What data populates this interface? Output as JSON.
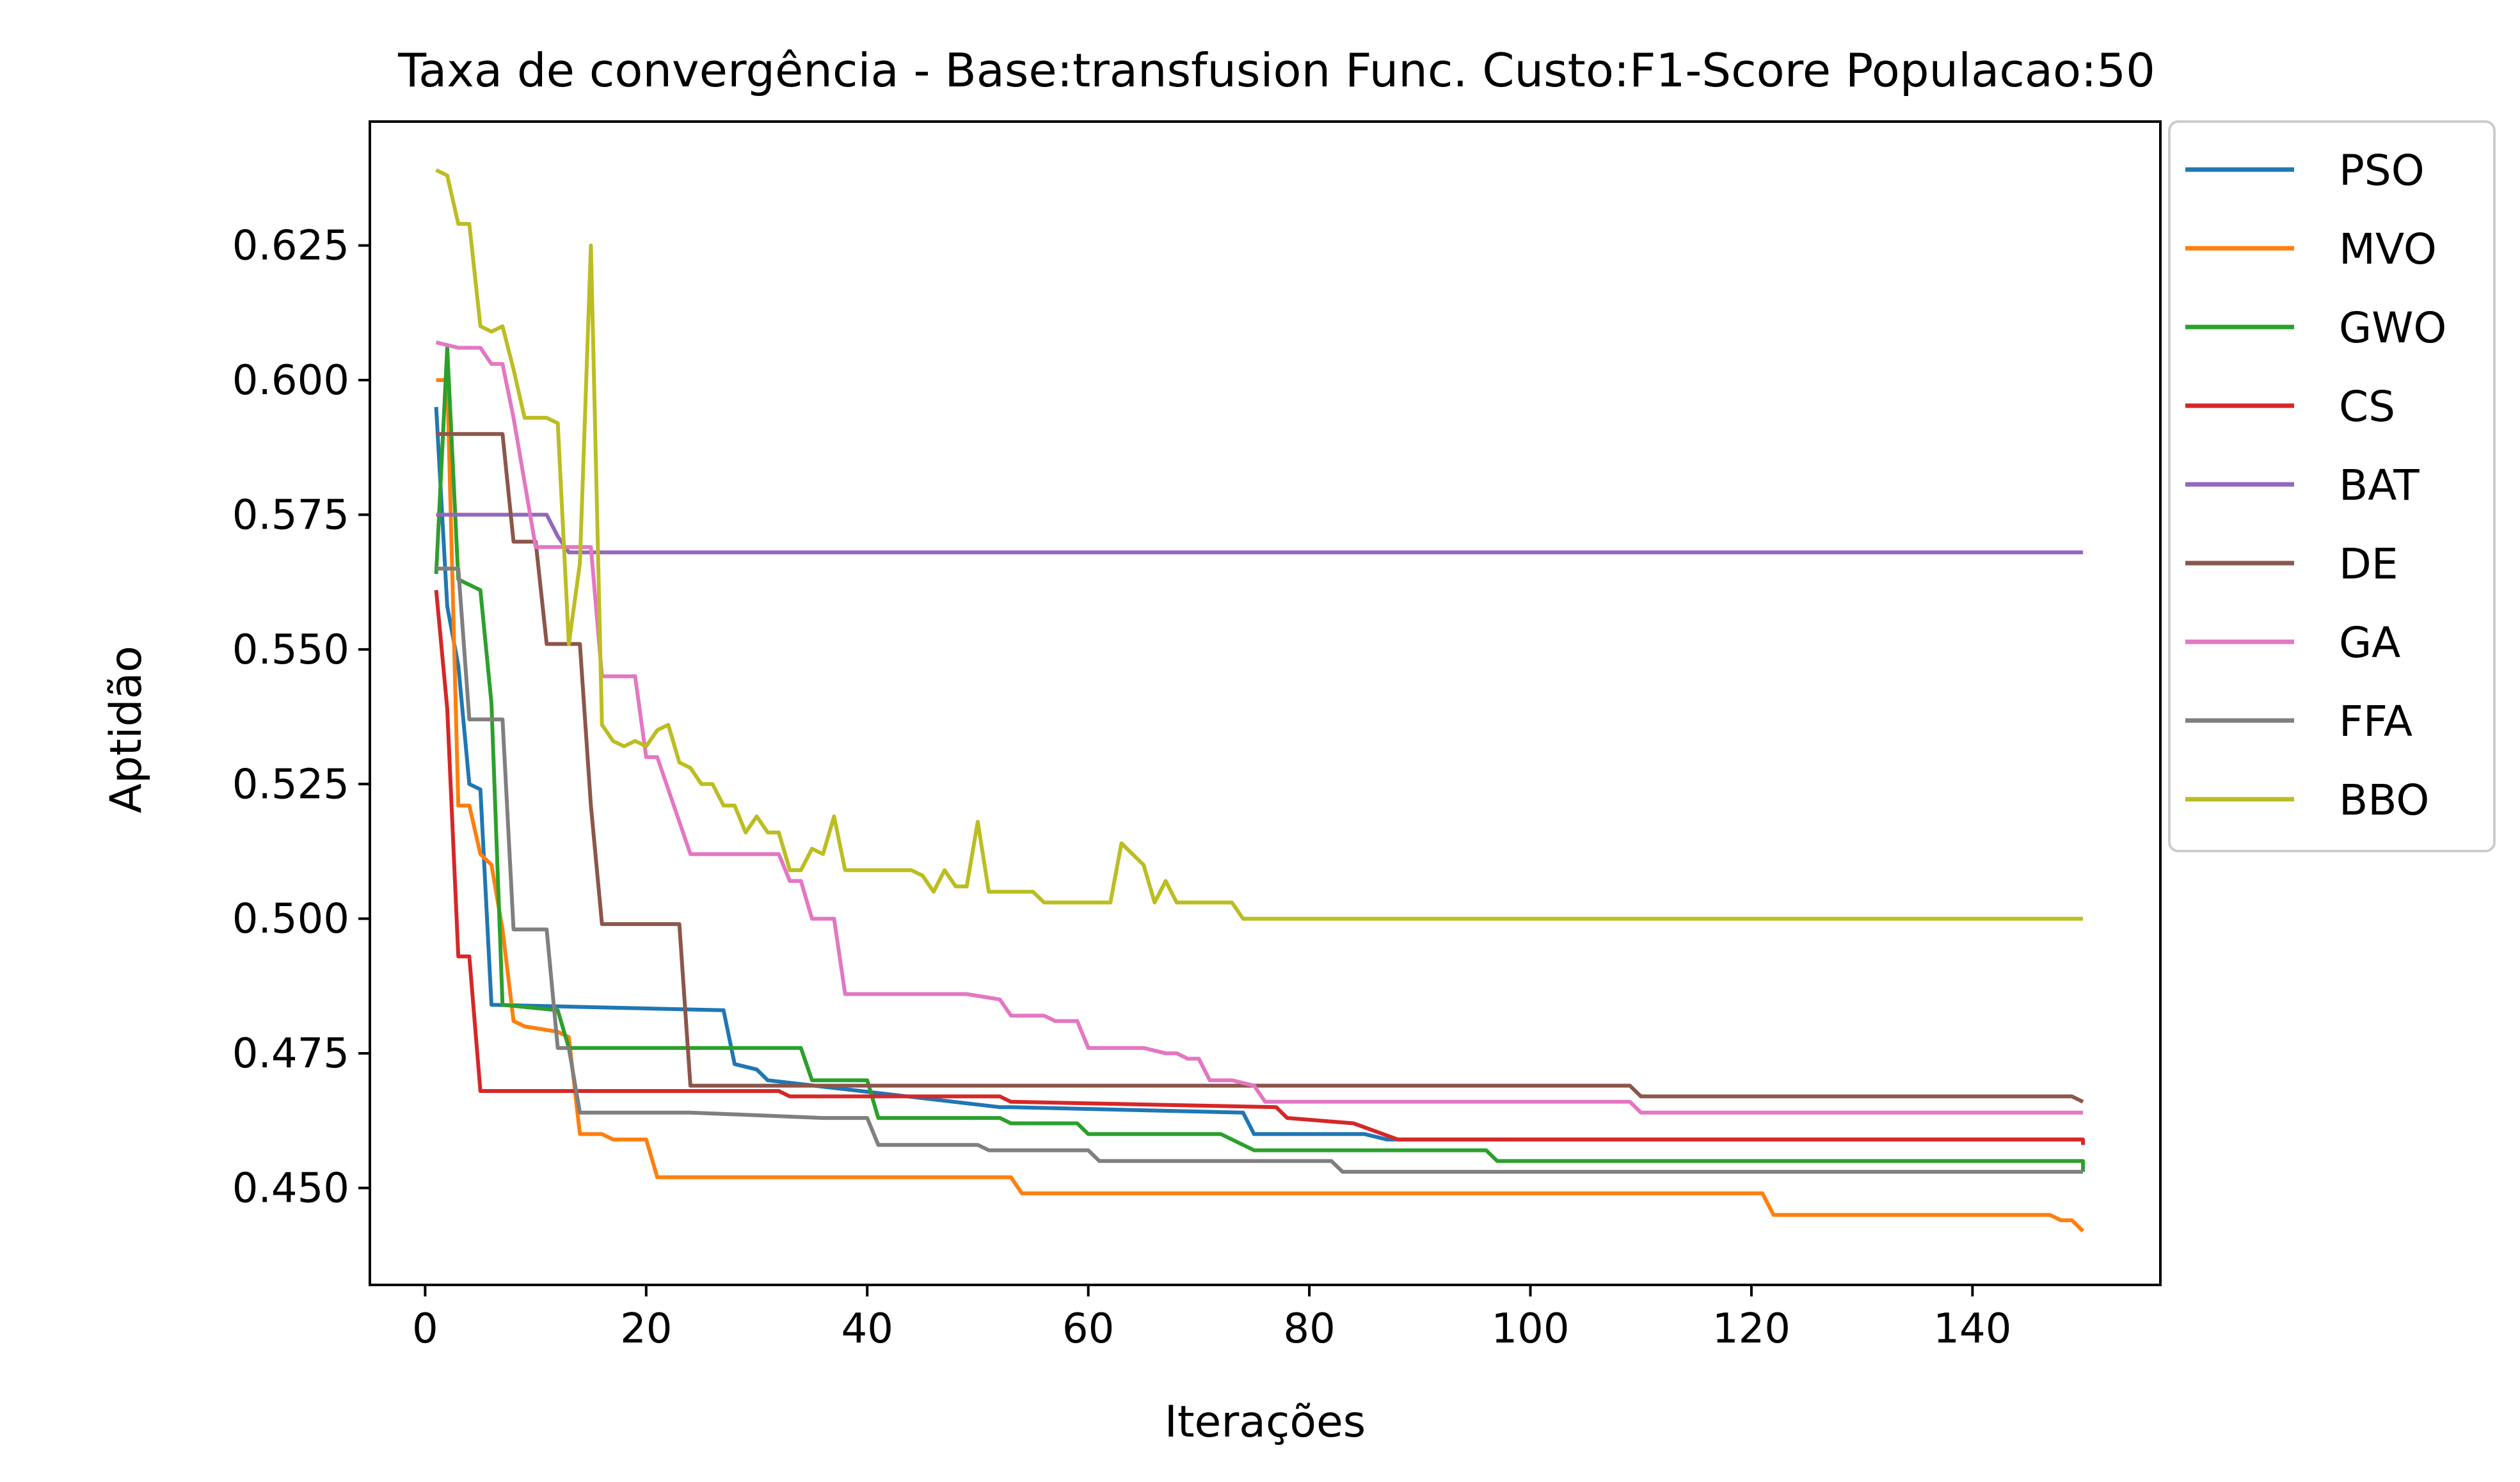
{
  "chart_data": {
    "type": "line",
    "title": "Taxa de convergência - Base:transfusion Func. Custo:F1-Score Populacao:50",
    "xlabel": "Iterações",
    "ylabel": "Aptidão",
    "xlim": [
      -5,
      157
    ],
    "ylim": [
      0.432,
      0.648
    ],
    "xticks": [
      0,
      20,
      40,
      60,
      80,
      100,
      120,
      140
    ],
    "yticks": [
      0.45,
      0.475,
      0.5,
      0.525,
      0.55,
      0.575,
      0.6,
      0.625
    ],
    "ytick_labels": [
      "0.450",
      "0.475",
      "0.500",
      "0.525",
      "0.550",
      "0.575",
      "0.600",
      "0.625"
    ],
    "grid": false,
    "legend_position": "outside top-right",
    "series": [
      {
        "name": "PSO",
        "color": "#1f77b4",
        "points": [
          [
            1,
            0.595
          ],
          [
            2,
            0.558
          ],
          [
            3,
            0.547
          ],
          [
            4,
            0.525
          ],
          [
            5,
            0.524
          ],
          [
            6,
            0.484
          ],
          [
            27,
            0.483
          ],
          [
            28,
            0.473
          ],
          [
            30,
            0.472
          ],
          [
            31,
            0.47
          ],
          [
            52,
            0.465
          ],
          [
            53,
            0.465
          ],
          [
            74,
            0.464
          ],
          [
            75,
            0.46
          ],
          [
            85,
            0.46
          ],
          [
            87,
            0.459
          ],
          [
            150,
            0.459
          ]
        ]
      },
      {
        "name": "MVO",
        "color": "#ff7f0e",
        "points": [
          [
            1,
            0.6
          ],
          [
            2,
            0.6
          ],
          [
            3,
            0.521
          ],
          [
            4,
            0.521
          ],
          [
            5,
            0.512
          ],
          [
            6,
            0.51
          ],
          [
            7,
            0.498
          ],
          [
            8,
            0.481
          ],
          [
            9,
            0.48
          ],
          [
            12,
            0.479
          ],
          [
            13,
            0.478
          ],
          [
            14,
            0.46
          ],
          [
            16,
            0.46
          ],
          [
            17,
            0.459
          ],
          [
            20,
            0.459
          ],
          [
            21,
            0.452
          ],
          [
            53,
            0.452
          ],
          [
            54,
            0.449
          ],
          [
            121,
            0.449
          ],
          [
            122,
            0.445
          ],
          [
            147,
            0.445
          ],
          [
            148,
            0.444
          ],
          [
            149,
            0.444
          ],
          [
            150,
            0.442
          ]
        ]
      },
      {
        "name": "GWO",
        "color": "#2ca02c",
        "points": [
          [
            1,
            0.564
          ],
          [
            2,
            0.606
          ],
          [
            3,
            0.563
          ],
          [
            4,
            0.562
          ],
          [
            5,
            0.561
          ],
          [
            6,
            0.54
          ],
          [
            7,
            0.484
          ],
          [
            12,
            0.483
          ],
          [
            13,
            0.476
          ],
          [
            34,
            0.476
          ],
          [
            35,
            0.47
          ],
          [
            40,
            0.47
          ],
          [
            41,
            0.463
          ],
          [
            52,
            0.463
          ],
          [
            53,
            0.462
          ],
          [
            59,
            0.462
          ],
          [
            60,
            0.46
          ],
          [
            72,
            0.46
          ],
          [
            75,
            0.457
          ],
          [
            96,
            0.457
          ],
          [
            97,
            0.455
          ],
          [
            150,
            0.455
          ],
          [
            150,
            0.453
          ]
        ]
      },
      {
        "name": "CS",
        "color": "#d62728",
        "points": [
          [
            1,
            0.561
          ],
          [
            2,
            0.539
          ],
          [
            3,
            0.493
          ],
          [
            4,
            0.493
          ],
          [
            5,
            0.468
          ],
          [
            32,
            0.468
          ],
          [
            33,
            0.467
          ],
          [
            52,
            0.467
          ],
          [
            53,
            0.466
          ],
          [
            77,
            0.465
          ],
          [
            78,
            0.463
          ],
          [
            84,
            0.462
          ],
          [
            88,
            0.459
          ],
          [
            150,
            0.459
          ],
          [
            150,
            0.458
          ]
        ]
      },
      {
        "name": "BAT",
        "color": "#9467bd",
        "points": [
          [
            1,
            0.575
          ],
          [
            11,
            0.575
          ],
          [
            12,
            0.571
          ],
          [
            13,
            0.568
          ],
          [
            150,
            0.568
          ]
        ]
      },
      {
        "name": "DE",
        "color": "#8c564b",
        "points": [
          [
            1,
            0.59
          ],
          [
            7,
            0.59
          ],
          [
            8,
            0.57
          ],
          [
            10,
            0.57
          ],
          [
            11,
            0.551
          ],
          [
            13,
            0.551
          ],
          [
            14,
            0.551
          ],
          [
            15,
            0.521
          ],
          [
            16,
            0.499
          ],
          [
            23,
            0.499
          ],
          [
            24,
            0.469
          ],
          [
            109,
            0.469
          ],
          [
            110,
            0.467
          ],
          [
            149,
            0.467
          ],
          [
            150,
            0.466
          ]
        ]
      },
      {
        "name": "GA",
        "color": "#e377c2",
        "points": [
          [
            1,
            0.607
          ],
          [
            3,
            0.606
          ],
          [
            5,
            0.606
          ],
          [
            6,
            0.603
          ],
          [
            7,
            0.603
          ],
          [
            8,
            0.593
          ],
          [
            10,
            0.569
          ],
          [
            15,
            0.569
          ],
          [
            16,
            0.545
          ],
          [
            19,
            0.545
          ],
          [
            20,
            0.53
          ],
          [
            21,
            0.53
          ],
          [
            23,
            0.518
          ],
          [
            24,
            0.512
          ],
          [
            32,
            0.512
          ],
          [
            33,
            0.507
          ],
          [
            34,
            0.507
          ],
          [
            35,
            0.5
          ],
          [
            37,
            0.5
          ],
          [
            38,
            0.486
          ],
          [
            49,
            0.486
          ],
          [
            52,
            0.485
          ],
          [
            53,
            0.482
          ],
          [
            56,
            0.482
          ],
          [
            57,
            0.481
          ],
          [
            59,
            0.481
          ],
          [
            60,
            0.476
          ],
          [
            65,
            0.476
          ],
          [
            67,
            0.475
          ],
          [
            68,
            0.475
          ],
          [
            69,
            0.474
          ],
          [
            70,
            0.474
          ],
          [
            71,
            0.47
          ],
          [
            73,
            0.47
          ],
          [
            75,
            0.469
          ],
          [
            76,
            0.466
          ],
          [
            109,
            0.466
          ],
          [
            110,
            0.464
          ],
          [
            150,
            0.464
          ]
        ]
      },
      {
        "name": "FFA",
        "color": "#7f7f7f",
        "points": [
          [
            1,
            0.565
          ],
          [
            3,
            0.565
          ],
          [
            4,
            0.537
          ],
          [
            7,
            0.537
          ],
          [
            8,
            0.498
          ],
          [
            11,
            0.498
          ],
          [
            12,
            0.476
          ],
          [
            13,
            0.476
          ],
          [
            14,
            0.464
          ],
          [
            23,
            0.464
          ],
          [
            24,
            0.464
          ],
          [
            36,
            0.463
          ],
          [
            40,
            0.463
          ],
          [
            41,
            0.458
          ],
          [
            50,
            0.458
          ],
          [
            51,
            0.457
          ],
          [
            60,
            0.457
          ],
          [
            61,
            0.455
          ],
          [
            82,
            0.455
          ],
          [
            83,
            0.453
          ],
          [
            150,
            0.453
          ]
        ]
      },
      {
        "name": "BBO",
        "color": "#bcbd22",
        "points": [
          [
            1,
            0.639
          ],
          [
            2,
            0.638
          ],
          [
            3,
            0.629
          ],
          [
            4,
            0.629
          ],
          [
            5,
            0.61
          ],
          [
            6,
            0.609
          ],
          [
            7,
            0.61
          ],
          [
            8,
            0.602
          ],
          [
            9,
            0.593
          ],
          [
            11,
            0.593
          ],
          [
            12,
            0.592
          ],
          [
            13,
            0.551
          ],
          [
            14,
            0.566
          ],
          [
            15,
            0.625
          ],
          [
            16,
            0.536
          ],
          [
            17,
            0.533
          ],
          [
            18,
            0.532
          ],
          [
            19,
            0.533
          ],
          [
            20,
            0.532
          ],
          [
            21,
            0.535
          ],
          [
            22,
            0.536
          ],
          [
            23,
            0.529
          ],
          [
            24,
            0.528
          ],
          [
            25,
            0.525
          ],
          [
            26,
            0.525
          ],
          [
            27,
            0.521
          ],
          [
            28,
            0.521
          ],
          [
            29,
            0.516
          ],
          [
            30,
            0.519
          ],
          [
            31,
            0.516
          ],
          [
            32,
            0.516
          ],
          [
            33,
            0.509
          ],
          [
            34,
            0.509
          ],
          [
            35,
            0.513
          ],
          [
            36,
            0.512
          ],
          [
            37,
            0.519
          ],
          [
            38,
            0.509
          ],
          [
            42,
            0.509
          ],
          [
            43,
            0.509
          ],
          [
            44,
            0.509
          ],
          [
            45,
            0.508
          ],
          [
            46,
            0.505
          ],
          [
            47,
            0.509
          ],
          [
            48,
            0.506
          ],
          [
            49,
            0.506
          ],
          [
            50,
            0.518
          ],
          [
            51,
            0.505
          ],
          [
            55,
            0.505
          ],
          [
            56,
            0.503
          ],
          [
            62,
            0.503
          ],
          [
            63,
            0.514
          ],
          [
            64,
            0.512
          ],
          [
            65,
            0.51
          ],
          [
            66,
            0.503
          ],
          [
            67,
            0.507
          ],
          [
            68,
            0.503
          ],
          [
            73,
            0.503
          ],
          [
            74,
            0.5
          ],
          [
            150,
            0.5
          ]
        ]
      }
    ]
  }
}
